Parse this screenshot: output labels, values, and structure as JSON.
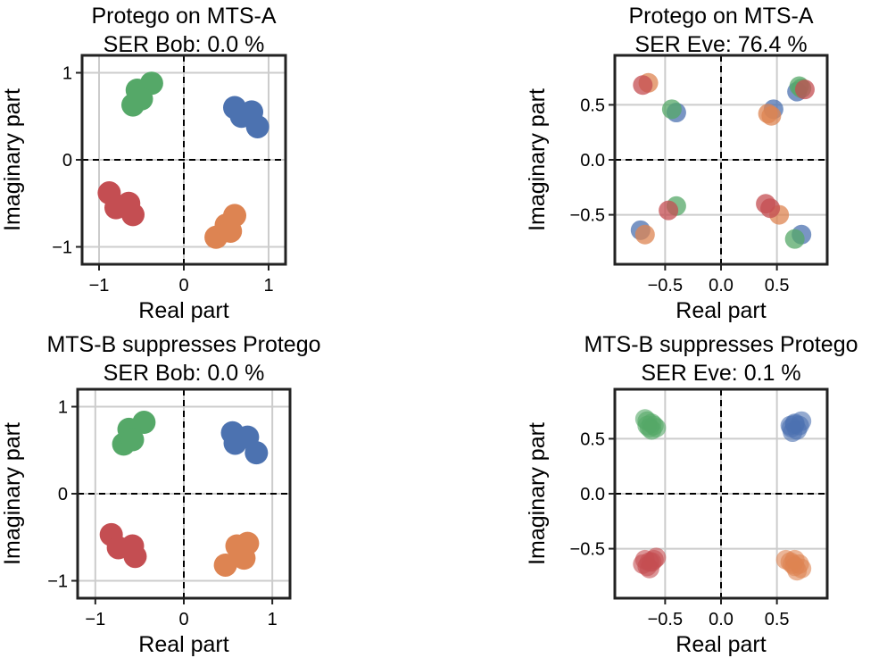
{
  "colors": {
    "class_0": "#4c72b0",
    "class_1": "#dd8452",
    "class_2": "#55a868",
    "class_3": "#c44e52"
  },
  "chart_data": [
    {
      "type": "scatter",
      "title": [
        "Protego on MTS-A",
        "SER Bob: 0.0 %"
      ],
      "xlabel": "Real part",
      "ylabel": "Imaginary part",
      "xlim": [
        -1.2,
        1.2
      ],
      "ylim": [
        -1.2,
        1.2
      ],
      "xticks": [
        -1,
        0,
        1
      ],
      "yticks": [
        -1,
        0,
        1
      ],
      "xtick_labels": [
        "−1",
        "0",
        "1"
      ],
      "ytick_labels": [
        "−1",
        "0",
        "1"
      ],
      "grid": true,
      "zero_lines": "dashed",
      "marker_opacity": 1.0,
      "series": [
        {
          "color_key": "class_0",
          "points": [
            [
              0.6,
              0.6
            ],
            [
              0.68,
              0.5
            ],
            [
              0.8,
              0.55
            ],
            [
              0.87,
              0.38
            ]
          ]
        },
        {
          "color_key": "class_1",
          "points": [
            [
              0.38,
              -0.89
            ],
            [
              0.5,
              -0.75
            ],
            [
              0.6,
              -0.64
            ],
            [
              0.55,
              -0.82
            ]
          ]
        },
        {
          "color_key": "class_2",
          "points": [
            [
              -0.38,
              0.88
            ],
            [
              -0.55,
              0.8
            ],
            [
              -0.6,
              0.63
            ],
            [
              -0.5,
              0.7
            ]
          ]
        },
        {
          "color_key": "class_3",
          "points": [
            [
              -0.88,
              -0.38
            ],
            [
              -0.8,
              -0.55
            ],
            [
              -0.65,
              -0.5
            ],
            [
              -0.6,
              -0.63
            ]
          ]
        }
      ]
    },
    {
      "type": "scatter",
      "title": [
        "Protego on MTS-A",
        "SER Eve: 76.4 %"
      ],
      "xlabel": "Real part",
      "ylabel": "Imaginary part",
      "xlim": [
        -0.95,
        0.95
      ],
      "ylim": [
        -0.95,
        0.95
      ],
      "xticks": [
        -0.5,
        0,
        0.5
      ],
      "yticks": [
        -0.5,
        0,
        0.5
      ],
      "xtick_labels": [
        "−0.5",
        "0.0",
        "0.5"
      ],
      "ytick_labels": [
        "−0.5",
        "0.0",
        "0.5"
      ],
      "grid": true,
      "zero_lines": "dashed",
      "marker_opacity": 0.75,
      "series": [
        {
          "color_key": "class_0",
          "points": [
            [
              0.47,
              0.46
            ],
            [
              0.72,
              -0.68
            ],
            [
              -0.72,
              -0.64
            ],
            [
              -0.4,
              0.43
            ],
            [
              0.68,
              0.62
            ]
          ]
        },
        {
          "color_key": "class_1",
          "points": [
            [
              0.42,
              0.42
            ],
            [
              -0.65,
              0.7
            ],
            [
              0.52,
              -0.5
            ],
            [
              -0.68,
              -0.68
            ],
            [
              0.45,
              0.4
            ]
          ]
        },
        {
          "color_key": "class_2",
          "points": [
            [
              0.7,
              0.67
            ],
            [
              -0.44,
              0.46
            ],
            [
              0.66,
              -0.72
            ],
            [
              -0.4,
              -0.42
            ],
            [
              0.72,
              0.65
            ]
          ]
        },
        {
          "color_key": "class_3",
          "points": [
            [
              -0.7,
              0.68
            ],
            [
              0.4,
              -0.4
            ],
            [
              -0.47,
              -0.46
            ],
            [
              0.75,
              0.64
            ],
            [
              0.44,
              -0.44
            ]
          ]
        }
      ]
    },
    {
      "type": "scatter",
      "title": [
        "MTS-B suppresses Protego",
        "SER Bob: 0.0 %"
      ],
      "xlabel": "Real part",
      "ylabel": "Imaginary part",
      "xlim": [
        -1.2,
        1.2
      ],
      "ylim": [
        -1.2,
        1.2
      ],
      "xticks": [
        -1,
        0,
        1
      ],
      "yticks": [
        -1,
        0,
        1
      ],
      "xtick_labels": [
        "−1",
        "0",
        "1"
      ],
      "ytick_labels": [
        "−1",
        "0",
        "1"
      ],
      "grid": true,
      "zero_lines": "dashed",
      "marker_opacity": 1.0,
      "series": [
        {
          "color_key": "class_0",
          "points": [
            [
              0.55,
              0.7
            ],
            [
              0.58,
              0.58
            ],
            [
              0.72,
              0.65
            ],
            [
              0.82,
              0.47
            ]
          ]
        },
        {
          "color_key": "class_1",
          "points": [
            [
              0.47,
              -0.82
            ],
            [
              0.6,
              -0.6
            ],
            [
              0.68,
              -0.74
            ],
            [
              0.72,
              -0.57
            ]
          ]
        },
        {
          "color_key": "class_2",
          "points": [
            [
              -0.45,
              0.82
            ],
            [
              -0.62,
              0.74
            ],
            [
              -0.68,
              0.57
            ],
            [
              -0.58,
              0.62
            ]
          ]
        },
        {
          "color_key": "class_3",
          "points": [
            [
              -0.82,
              -0.47
            ],
            [
              -0.74,
              -0.62
            ],
            [
              -0.58,
              -0.6
            ],
            [
              -0.55,
              -0.72
            ]
          ]
        }
      ]
    },
    {
      "type": "scatter",
      "title": [
        "MTS-B suppresses Protego",
        "SER Eve: 0.1 %"
      ],
      "xlabel": "Real part",
      "ylabel": "Imaginary part",
      "xlim": [
        -0.95,
        0.95
      ],
      "ylim": [
        -0.95,
        0.95
      ],
      "xticks": [
        -0.5,
        0,
        0.5
      ],
      "yticks": [
        -0.5,
        0,
        0.5
      ],
      "xtick_labels": [
        "−0.5",
        "0.0",
        "0.5"
      ],
      "ytick_labels": [
        "−0.5",
        "0.0",
        "0.5"
      ],
      "grid": true,
      "zero_lines": "dashed",
      "marker_opacity": 0.6,
      "series": [
        {
          "color_key": "class_0",
          "points": [
            [
              0.63,
              0.6
            ],
            [
              0.66,
              0.63
            ],
            [
              0.7,
              0.62
            ],
            [
              0.68,
              0.58
            ],
            [
              0.64,
              0.56
            ],
            [
              0.72,
              0.66
            ],
            [
              0.66,
              0.64
            ],
            [
              0.62,
              0.62
            ]
          ]
        },
        {
          "color_key": "class_1",
          "points": [
            [
              0.62,
              -0.62
            ],
            [
              0.66,
              -0.66
            ],
            [
              0.7,
              -0.64
            ],
            [
              0.68,
              -0.7
            ],
            [
              0.58,
              -0.6
            ],
            [
              0.72,
              -0.68
            ],
            [
              0.64,
              -0.64
            ],
            [
              0.66,
              -0.6
            ]
          ]
        },
        {
          "color_key": "class_2",
          "points": [
            [
              -0.62,
              0.64
            ],
            [
              -0.66,
              0.66
            ],
            [
              -0.6,
              0.62
            ],
            [
              -0.64,
              0.6
            ],
            [
              -0.58,
              0.6
            ],
            [
              -0.68,
              0.68
            ],
            [
              -0.62,
              0.58
            ],
            [
              -0.66,
              0.62
            ]
          ]
        },
        {
          "color_key": "class_3",
          "points": [
            [
              -0.62,
              -0.62
            ],
            [
              -0.66,
              -0.66
            ],
            [
              -0.7,
              -0.64
            ],
            [
              -0.6,
              -0.6
            ],
            [
              -0.64,
              -0.68
            ],
            [
              -0.68,
              -0.6
            ],
            [
              -0.58,
              -0.58
            ],
            [
              -0.64,
              -0.62
            ]
          ]
        }
      ]
    }
  ]
}
